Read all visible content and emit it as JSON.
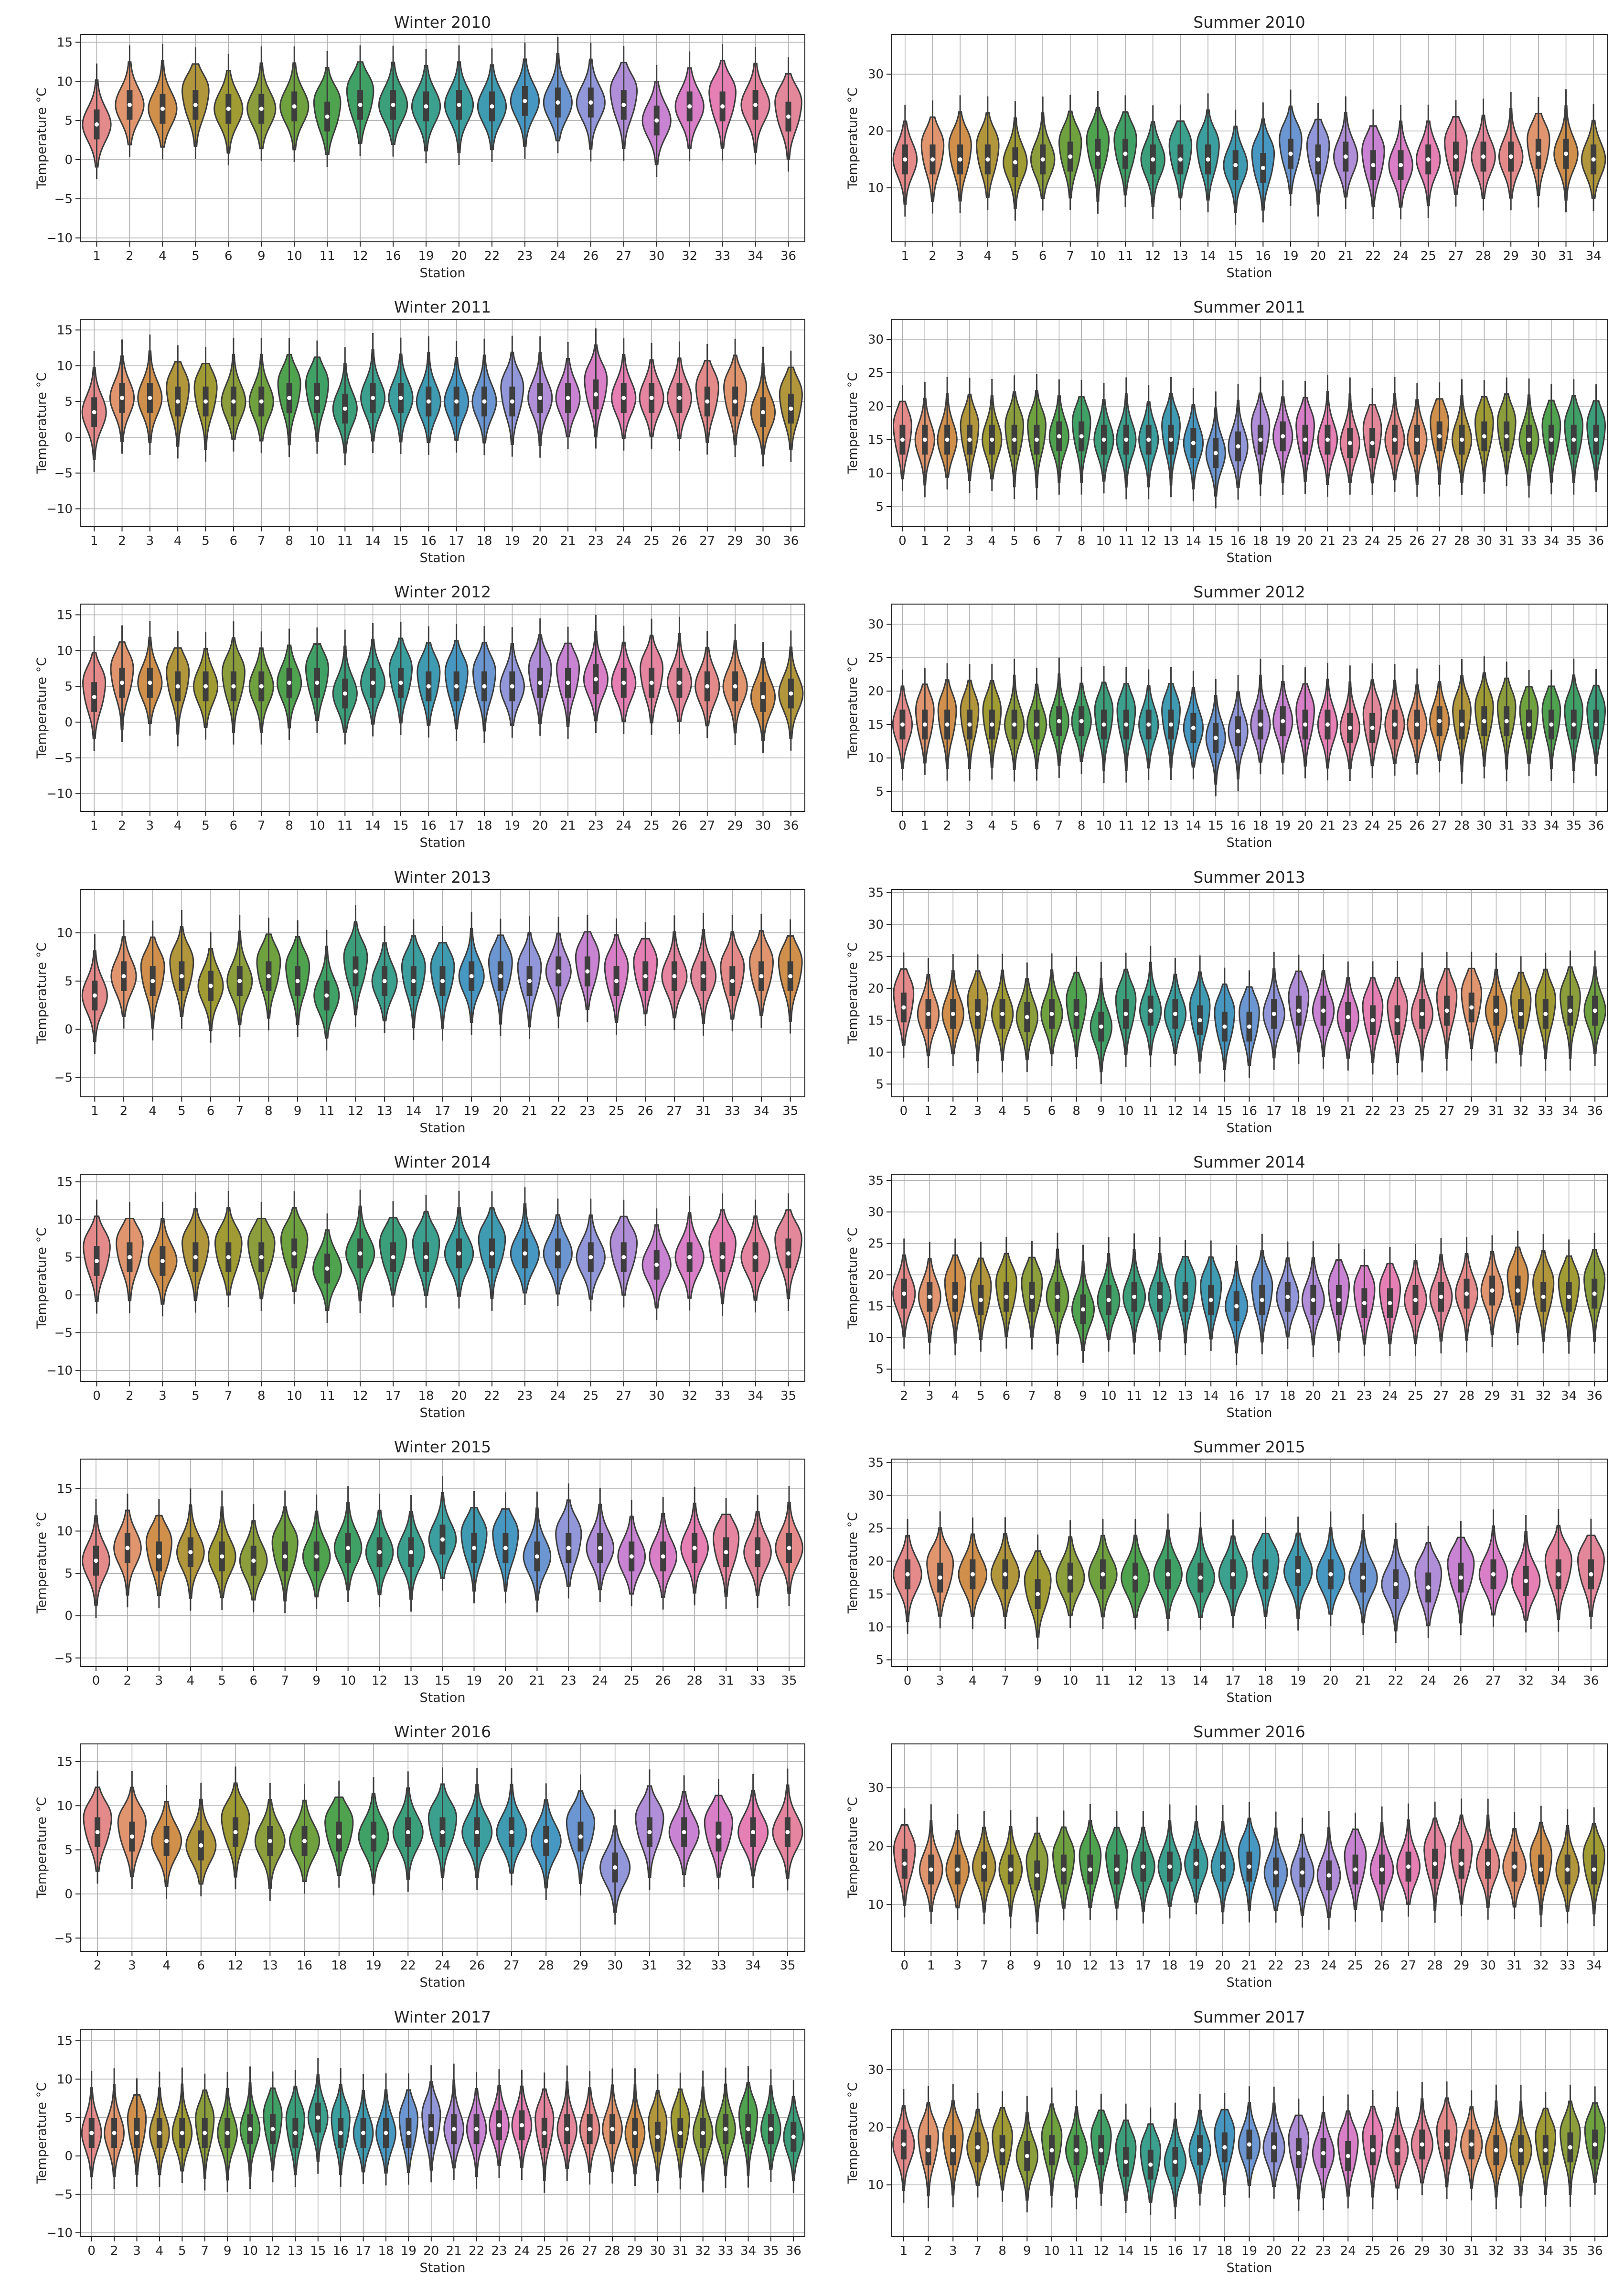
{
  "chart_data": [
    {
      "type": "violin",
      "title": "Winter 2010",
      "xlabel": "Station",
      "ylabel": "Temperature $^\\circ C$",
      "ylim": [
        -10.5,
        16
      ],
      "yticks": [
        -10,
        -5,
        0,
        5,
        10,
        15
      ],
      "categories": [
        "1",
        "2",
        "4",
        "5",
        "6",
        "9",
        "10",
        "11",
        "12",
        "16",
        "19",
        "20",
        "22",
        "23",
        "24",
        "26",
        "27",
        "30",
        "32",
        "33",
        "34",
        "36"
      ],
      "medians": [
        4.5,
        7,
        6.5,
        7,
        6.5,
        6.5,
        6.8,
        5.5,
        7,
        7,
        6.8,
        7,
        6.8,
        7.5,
        7.3,
        7.3,
        7,
        5,
        6.8,
        6.8,
        7,
        5.5
      ]
    },
    {
      "type": "violin",
      "title": "Summer 2010",
      "xlabel": "Station",
      "ylabel": "Temperature $^\\circ C$",
      "ylim": [
        0.5,
        37
      ],
      "yticks": [
        10,
        20,
        30
      ],
      "categories": [
        "1",
        "2",
        "3",
        "4",
        "5",
        "6",
        "7",
        "10",
        "11",
        "12",
        "13",
        "14",
        "15",
        "16",
        "19",
        "20",
        "21",
        "22",
        "24",
        "25",
        "27",
        "28",
        "29",
        "30",
        "31",
        "34"
      ],
      "medians": [
        15,
        15,
        15,
        15,
        14.5,
        15,
        15.5,
        16,
        16,
        15,
        15,
        15,
        14,
        13.5,
        16,
        15,
        15.5,
        14,
        14,
        15,
        15.5,
        15.5,
        15.5,
        16,
        16,
        15
      ]
    },
    {
      "type": "violin",
      "title": "Winter 2011",
      "xlabel": "Station",
      "ylabel": "Temperature $^\\circ C$",
      "ylim": [
        -12.5,
        16.5
      ],
      "yticks": [
        -10,
        -5,
        0,
        5,
        10,
        15
      ],
      "categories": [
        "1",
        "2",
        "3",
        "4",
        "5",
        "6",
        "7",
        "8",
        "10",
        "11",
        "14",
        "15",
        "16",
        "17",
        "18",
        "19",
        "20",
        "21",
        "23",
        "24",
        "25",
        "26",
        "27",
        "29",
        "30",
        "36"
      ],
      "medians": [
        3.5,
        5.5,
        5.5,
        5,
        5,
        5,
        5,
        5.5,
        5.5,
        4,
        5.5,
        5.5,
        5,
        5,
        5,
        5,
        5.5,
        5.5,
        6,
        5.5,
        5.5,
        5.5,
        5,
        5,
        3.5,
        4
      ]
    },
    {
      "type": "violin",
      "title": "Summer 2011",
      "xlabel": "Station",
      "ylabel": "Temperature $^\\circ C$",
      "ylim": [
        2,
        33
      ],
      "yticks": [
        5,
        10,
        15,
        20,
        25,
        30
      ],
      "categories": [
        "0",
        "1",
        "2",
        "3",
        "4",
        "5",
        "6",
        "7",
        "8",
        "10",
        "11",
        "12",
        "13",
        "14",
        "15",
        "16",
        "18",
        "19",
        "20",
        "21",
        "23",
        "24",
        "25",
        "26",
        "27",
        "28",
        "30",
        "31",
        "33",
        "34",
        "35",
        "36"
      ],
      "medians": [
        15,
        15,
        15,
        15,
        15,
        15,
        15,
        15.5,
        15.5,
        15,
        15,
        15,
        15,
        14.5,
        13,
        14,
        15,
        15.5,
        15,
        15,
        14.5,
        14.5,
        15,
        15,
        15.5,
        15,
        15.5,
        15.5,
        15,
        15,
        15,
        15
      ]
    },
    {
      "type": "violin",
      "title": "Winter 2012",
      "xlabel": "Station",
      "ylabel": "Temperature $^\\circ C$",
      "ylim": [
        -12.5,
        16.5
      ],
      "yticks": [
        -10,
        -5,
        0,
        5,
        10,
        15
      ],
      "categories": [
        "1",
        "2",
        "3",
        "4",
        "5",
        "6",
        "7",
        "8",
        "10",
        "11",
        "14",
        "15",
        "16",
        "17",
        "18",
        "19",
        "20",
        "21",
        "23",
        "24",
        "25",
        "26",
        "27",
        "29",
        "30",
        "36"
      ],
      "medians": [
        3.5,
        5.5,
        5.5,
        5,
        5,
        5,
        5,
        5.5,
        5.5,
        4,
        5.5,
        5.5,
        5,
        5,
        5,
        5,
        5.5,
        5.5,
        6,
        5.5,
        5.5,
        5.5,
        5,
        5,
        3.5,
        4
      ]
    },
    {
      "type": "violin",
      "title": "Summer 2012",
      "xlabel": "Station",
      "ylabel": "Temperature $^\\circ C$",
      "ylim": [
        2,
        33
      ],
      "yticks": [
        5,
        10,
        15,
        20,
        25,
        30
      ],
      "categories": [
        "0",
        "1",
        "2",
        "3",
        "4",
        "5",
        "6",
        "7",
        "8",
        "10",
        "11",
        "12",
        "13",
        "14",
        "15",
        "16",
        "18",
        "19",
        "20",
        "21",
        "23",
        "24",
        "25",
        "26",
        "27",
        "28",
        "30",
        "31",
        "33",
        "34",
        "35",
        "36"
      ],
      "medians": [
        15,
        15,
        15,
        15,
        15,
        15,
        15,
        15.5,
        15.5,
        15,
        15,
        15,
        15,
        14.5,
        13,
        14,
        15,
        15.5,
        15,
        15,
        14.5,
        14.5,
        15,
        15,
        15.5,
        15,
        15.5,
        15.5,
        15,
        15,
        15,
        15
      ]
    },
    {
      "type": "violin",
      "title": "Winter 2013",
      "xlabel": "Station",
      "ylabel": "Temperature $^\\circ C$",
      "ylim": [
        -7,
        14.5
      ],
      "yticks": [
        -5,
        0,
        5,
        10
      ],
      "categories": [
        "1",
        "2",
        "4",
        "5",
        "6",
        "7",
        "8",
        "9",
        "11",
        "12",
        "13",
        "14",
        "17",
        "19",
        "20",
        "21",
        "22",
        "23",
        "25",
        "26",
        "27",
        "31",
        "33",
        "34",
        "35"
      ],
      "medians": [
        3.5,
        5.5,
        5,
        5.5,
        4.5,
        5,
        5.5,
        5,
        3.5,
        6,
        5,
        5,
        5,
        5.5,
        5.5,
        5,
        6,
        6,
        5,
        5.5,
        5.5,
        5.5,
        5,
        5.5,
        5.5
      ]
    },
    {
      "type": "violin",
      "title": "Summer 2013",
      "xlabel": "Station",
      "ylabel": "Temperature $^\\circ C$",
      "ylim": [
        3,
        35.5
      ],
      "yticks": [
        5,
        10,
        15,
        20,
        25,
        30,
        35
      ],
      "categories": [
        "0",
        "1",
        "2",
        "3",
        "4",
        "5",
        "6",
        "8",
        "9",
        "10",
        "11",
        "12",
        "14",
        "15",
        "16",
        "17",
        "18",
        "19",
        "21",
        "22",
        "23",
        "25",
        "27",
        "29",
        "31",
        "32",
        "33",
        "34",
        "36"
      ],
      "medians": [
        17,
        16,
        16,
        16,
        16,
        15.5,
        16,
        16,
        14,
        16,
        16.5,
        16,
        15,
        14,
        14,
        16,
        16.5,
        16.5,
        15.5,
        15,
        15,
        16,
        16.5,
        17,
        16.5,
        16,
        16,
        16.5,
        16.5
      ]
    },
    {
      "type": "violin",
      "title": "Winter 2014",
      "xlabel": "Station",
      "ylabel": "Temperature $^\\circ C$",
      "ylim": [
        -11.5,
        16
      ],
      "yticks": [
        -10,
        -5,
        0,
        5,
        10,
        15
      ],
      "categories": [
        "0",
        "2",
        "3",
        "5",
        "7",
        "8",
        "10",
        "11",
        "12",
        "17",
        "18",
        "20",
        "22",
        "23",
        "24",
        "25",
        "27",
        "30",
        "32",
        "33",
        "34",
        "35"
      ],
      "medians": [
        4.5,
        5,
        4.5,
        5,
        5,
        5,
        5.5,
        3.5,
        5.5,
        5,
        5,
        5.5,
        5.5,
        5.5,
        5.5,
        5,
        5,
        4,
        5,
        5,
        5,
        5.5
      ]
    },
    {
      "type": "violin",
      "title": "Summer 2014",
      "xlabel": "Station",
      "ylabel": "Temperature $^\\circ C$",
      "ylim": [
        3,
        36
      ],
      "yticks": [
        5,
        10,
        15,
        20,
        25,
        30,
        35
      ],
      "categories": [
        "2",
        "3",
        "4",
        "5",
        "6",
        "7",
        "8",
        "9",
        "10",
        "11",
        "12",
        "13",
        "14",
        "16",
        "17",
        "18",
        "20",
        "21",
        "23",
        "24",
        "25",
        "27",
        "28",
        "29",
        "31",
        "32",
        "34",
        "36"
      ],
      "medians": [
        17,
        16.5,
        16.5,
        16,
        16.5,
        16.5,
        16.5,
        14.5,
        16,
        16.5,
        16.5,
        16.5,
        16,
        15,
        16,
        16.5,
        16,
        16,
        15.5,
        15.5,
        16,
        16.5,
        17,
        17.5,
        17.5,
        16.5,
        16.5,
        17
      ]
    },
    {
      "type": "violin",
      "title": "Winter 2015",
      "xlabel": "Station",
      "ylabel": "Temperature $^\\circ C$",
      "ylim": [
        -6,
        18.5
      ],
      "yticks": [
        -5,
        0,
        5,
        10,
        15
      ],
      "categories": [
        "0",
        "2",
        "3",
        "4",
        "5",
        "6",
        "7",
        "9",
        "10",
        "12",
        "13",
        "15",
        "19",
        "20",
        "21",
        "23",
        "24",
        "25",
        "26",
        "28",
        "31",
        "33",
        "35"
      ],
      "medians": [
        6.5,
        8,
        7,
        7.5,
        7,
        6.5,
        7,
        7,
        8,
        7.5,
        7.5,
        9,
        8,
        8,
        7,
        8,
        8,
        7,
        7,
        8,
        7.5,
        7.5,
        8
      ]
    },
    {
      "type": "violin",
      "title": "Summer 2015",
      "xlabel": "Station",
      "ylabel": "Temperature $^\\circ C$",
      "ylim": [
        4,
        35.5
      ],
      "yticks": [
        5,
        10,
        15,
        20,
        25,
        30,
        35
      ],
      "categories": [
        "0",
        "3",
        "4",
        "7",
        "9",
        "10",
        "11",
        "12",
        "13",
        "14",
        "17",
        "18",
        "19",
        "20",
        "21",
        "22",
        "24",
        "26",
        "27",
        "32",
        "34",
        "36"
      ],
      "medians": [
        18,
        17.5,
        18,
        18,
        15,
        17.5,
        18,
        17.5,
        18,
        17.5,
        18,
        18,
        18.5,
        18,
        17.5,
        16.5,
        16,
        17.5,
        18,
        17,
        18,
        18
      ]
    },
    {
      "type": "violin",
      "title": "Winter 2016",
      "xlabel": "Station",
      "ylabel": "Temperature $^\\circ C$",
      "ylim": [
        -6.5,
        17
      ],
      "yticks": [
        -5,
        0,
        5,
        10,
        15
      ],
      "categories": [
        "2",
        "3",
        "4",
        "6",
        "12",
        "13",
        "16",
        "18",
        "19",
        "22",
        "24",
        "26",
        "27",
        "28",
        "29",
        "30",
        "31",
        "32",
        "33",
        "34",
        "35"
      ],
      "medians": [
        7,
        6.5,
        6,
        5.5,
        7,
        6,
        6,
        6.5,
        6.5,
        7,
        7,
        7,
        7,
        6,
        6.5,
        3,
        7,
        7,
        6.5,
        7,
        7
      ]
    },
    {
      "type": "violin",
      "title": "Summer 2016",
      "xlabel": "Station",
      "ylabel": "Temperature $^\\circ C$",
      "ylim": [
        2,
        37.5
      ],
      "yticks": [
        10,
        20,
        30
      ],
      "categories": [
        "0",
        "1",
        "3",
        "7",
        "8",
        "9",
        "10",
        "12",
        "13",
        "17",
        "18",
        "19",
        "20",
        "21",
        "22",
        "23",
        "24",
        "25",
        "26",
        "27",
        "28",
        "29",
        "30",
        "31",
        "32",
        "33",
        "34"
      ],
      "medians": [
        17,
        16,
        16,
        16.5,
        16,
        15,
        16,
        16,
        16,
        16.5,
        16.5,
        17,
        16.5,
        16.5,
        15.5,
        15.5,
        15,
        16,
        16,
        16.5,
        17,
        17,
        17,
        16.5,
        16,
        16,
        16
      ]
    },
    {
      "type": "violin",
      "title": "Winter 2017",
      "xlabel": "Station",
      "ylabel": "Temperature $^\\circ C$",
      "ylim": [
        -10.5,
        16.5
      ],
      "yticks": [
        -10,
        -5,
        0,
        5,
        10,
        15
      ],
      "categories": [
        "0",
        "2",
        "3",
        "4",
        "5",
        "7",
        "9",
        "10",
        "12",
        "13",
        "15",
        "16",
        "17",
        "18",
        "19",
        "20",
        "21",
        "22",
        "23",
        "24",
        "25",
        "26",
        "27",
        "28",
        "29",
        "30",
        "31",
        "32",
        "33",
        "34",
        "35",
        "36"
      ],
      "medians": [
        3,
        3,
        3,
        3,
        3,
        3,
        3,
        3.5,
        3.5,
        3,
        5,
        3,
        3,
        3,
        3,
        3.5,
        3.5,
        3.5,
        4,
        4,
        3,
        3.5,
        3.5,
        3.5,
        3,
        2.5,
        3,
        3,
        3.5,
        3.5,
        3.5,
        2.5
      ]
    },
    {
      "type": "violin",
      "title": "Summer 2017",
      "xlabel": "Station",
      "ylabel": "Temperature $^\\circ C$",
      "ylim": [
        1,
        37
      ],
      "yticks": [
        10,
        20,
        30
      ],
      "categories": [
        "1",
        "2",
        "3",
        "7",
        "8",
        "9",
        "10",
        "11",
        "12",
        "14",
        "15",
        "16",
        "17",
        "18",
        "19",
        "20",
        "22",
        "23",
        "24",
        "25",
        "26",
        "29",
        "30",
        "31",
        "32",
        "33",
        "34",
        "35",
        "36"
      ],
      "medians": [
        17,
        16,
        16,
        16.5,
        16,
        15,
        16,
        16,
        16,
        14,
        13.5,
        14,
        16,
        16.5,
        17,
        16.5,
        15.5,
        15.5,
        15,
        16,
        16,
        17,
        17,
        17,
        16,
        16,
        16,
        16.5,
        17
      ]
    }
  ],
  "palette": [
    "#e58a8a",
    "#e1956e",
    "#d08f4b",
    "#b2963b",
    "#a09b33",
    "#8c9e3b",
    "#6fa13f",
    "#4fa34f",
    "#40a166",
    "#3b9f7b",
    "#3ba08d",
    "#3c9f9f",
    "#3e9bb1",
    "#4698c3",
    "#6b96d1",
    "#9197d9",
    "#b08ed8",
    "#c884d3",
    "#d97fc7",
    "#e67fb3",
    "#e585a0",
    "#e3879a"
  ]
}
